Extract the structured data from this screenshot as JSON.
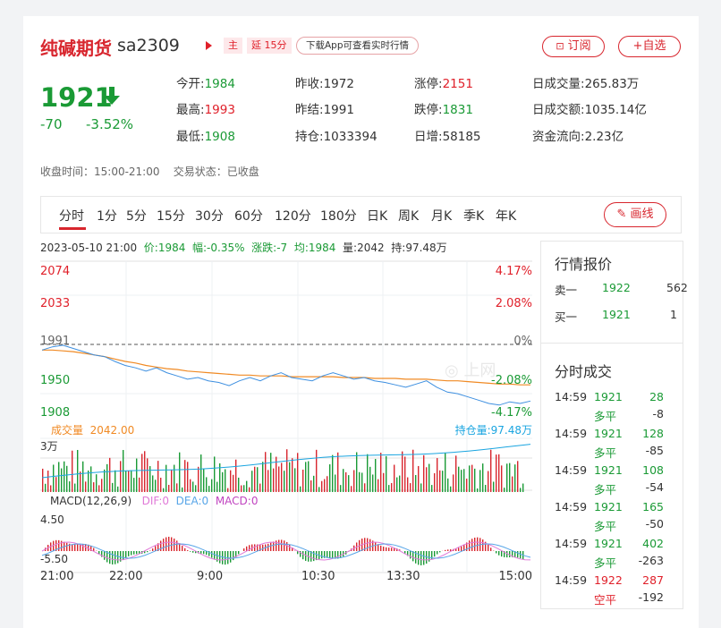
{
  "header": {
    "name": "纯碱期货",
    "code": "sa2309",
    "tag_main": "主",
    "tag_delay": "延 15分",
    "download_app": "下载App可查看实时行情",
    "subscribe": "订阅",
    "add_watch": "+自选"
  },
  "price": {
    "last": "1921",
    "change": "-70",
    "change_pct": "-3.52%"
  },
  "quote": {
    "open_l": "今开:",
    "open_v": "1984",
    "high_l": "最高:",
    "high_v": "1993",
    "low_l": "最低:",
    "low_v": "1908",
    "prevclose_l": "昨收:",
    "prevclose_v": "1972",
    "prevsettle_l": "昨结:",
    "prevsettle_v": "1991",
    "oi_l": "持仓:",
    "oi_v": "1033394",
    "limitup_l": "涨停:",
    "limitup_v": "2151",
    "limitdown_l": "跌停:",
    "limitdown_v": "1831",
    "dailyinc_l": "日增:",
    "dailyinc_v": "58185",
    "vol_l": "日成交量:",
    "vol_v": "265.83万",
    "amt_l": "日成交额:",
    "amt_v": "1035.14亿",
    "flow_l": "资金流向:",
    "flow_v": "2.23亿"
  },
  "status": {
    "close_time": "收盘时间：15:00-21:00",
    "trade_state": "交易状态：已收盘"
  },
  "tabs": [
    "分时",
    "1分",
    "5分",
    "15分",
    "30分",
    "60分",
    "120分",
    "180分",
    "日K",
    "周K",
    "月K",
    "季K",
    "年K"
  ],
  "draw_button": "画线",
  "infoline": {
    "datetime": "2023-05-10 21:00",
    "price": "价:1984",
    "amp": "幅:-0.35%",
    "change": "涨跌:-7",
    "avg": "均:1984",
    "vol": "量:2042",
    "oi": "持:97.48万"
  },
  "chart_labels": {
    "left_prices": [
      "2074",
      "2033",
      "1991",
      "1950",
      "1908"
    ],
    "right_pcts": [
      "4.17%",
      "2.08%",
      "0%",
      "-2.08%",
      "-4.17%"
    ],
    "vol_label": "成交量",
    "vol_value": "2042.00",
    "oi_label": "持仓量:97.48万",
    "vol_axis": "3万",
    "macd_title": "MACD(12,26,9)",
    "dif": "DIF:0",
    "dea": "DEA:0",
    "macd": "MACD:0",
    "macd_top": "4.50",
    "macd_bottom": "-5.50",
    "time_ticks": [
      "21:00",
      "22:00",
      "9:00",
      "10:30",
      "13:30",
      "15:00"
    ],
    "watermark": "上网"
  },
  "chart_data": {
    "type": "line",
    "ylim": [
      1908,
      2074
    ],
    "base": 1991,
    "series": [
      {
        "values": [
          1984,
          1988,
          1990,
          1986,
          1982,
          1978,
          1976,
          1970,
          1965,
          1962,
          1958,
          1962,
          1956,
          1952,
          1948,
          1950,
          1946,
          1944,
          1940,
          1946,
          1950,
          1946,
          1952,
          1956,
          1950,
          1948,
          1946,
          1952,
          1956,
          1952,
          1948,
          1950,
          1946,
          1944,
          1941,
          1938,
          1942,
          1946,
          1938,
          1932,
          1930,
          1926,
          1922,
          1918,
          1916,
          1920,
          1918,
          1921
        ]
      },
      {
        "values": [
          1984,
          1984,
          1983,
          1982,
          1980,
          1978,
          1976,
          1973,
          1970,
          1968,
          1965,
          1963,
          1961,
          1960,
          1958,
          1957,
          1956,
          1955,
          1954,
          1953,
          1953,
          1952,
          1952,
          1952,
          1951,
          1951,
          1951,
          1951,
          1951,
          1950,
          1950,
          1950,
          1949,
          1949,
          1949,
          1948,
          1948,
          1948,
          1947,
          1946,
          1946,
          1945,
          1944,
          1943,
          1942,
          1942,
          1941,
          1941
        ]
      }
    ]
  },
  "side": {
    "quote_title": "行情报价",
    "sell1_l": "卖一",
    "sell1_p": "1922",
    "sell1_v": "562",
    "buy1_l": "买一",
    "buy1_p": "1921",
    "buy1_v": "1",
    "trades_title": "分时成交",
    "trades": [
      {
        "time": "14:59",
        "price": "1921",
        "vol": "28",
        "type": "多平",
        "oi": "-8",
        "pc": "green",
        "vc": "green",
        "tc": "green"
      },
      {
        "time": "14:59",
        "price": "1921",
        "vol": "128",
        "type": "多平",
        "oi": "-85",
        "pc": "green",
        "vc": "green",
        "tc": "green"
      },
      {
        "time": "14:59",
        "price": "1921",
        "vol": "108",
        "type": "多平",
        "oi": "-54",
        "pc": "green",
        "vc": "green",
        "tc": "green"
      },
      {
        "time": "14:59",
        "price": "1921",
        "vol": "165",
        "type": "多平",
        "oi": "-50",
        "pc": "green",
        "vc": "green",
        "tc": "green"
      },
      {
        "time": "14:59",
        "price": "1921",
        "vol": "402",
        "type": "多平",
        "oi": "-263",
        "pc": "green",
        "vc": "green",
        "tc": "green"
      },
      {
        "time": "14:59",
        "price": "1922",
        "vol": "287",
        "type": "空平",
        "oi": "-192",
        "pc": "red",
        "vc": "red",
        "tc": "red"
      }
    ]
  }
}
